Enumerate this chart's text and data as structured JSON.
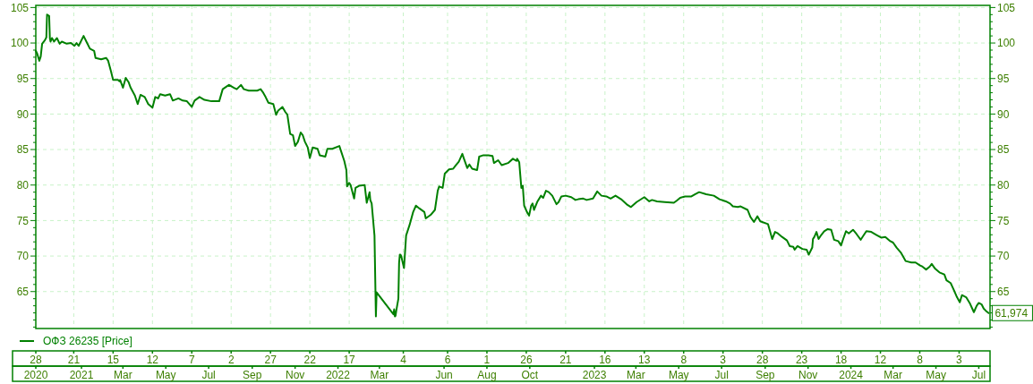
{
  "chart_data": {
    "type": "line",
    "x": [
      "2020-10-28",
      "2020-10-30",
      "2020-11-02",
      "2020-11-04",
      "2020-11-06",
      "2020-11-10",
      "2020-11-12",
      "2020-11-13",
      "2020-11-16",
      "2020-11-17",
      "2020-11-18",
      "2020-11-20",
      "2020-11-23",
      "2020-11-27",
      "2020-12-01",
      "2020-12-04",
      "2020-12-11",
      "2020-12-17",
      "2020-12-22",
      "2020-12-25",
      "2020-12-28",
      "2021-01-04",
      "2021-01-08",
      "2021-01-13",
      "2021-01-19",
      "2021-01-21",
      "2021-01-29",
      "2021-02-05",
      "2021-02-08",
      "2021-02-12",
      "2021-02-15",
      "2021-02-22",
      "2021-02-24",
      "2021-02-25",
      "2021-03-01",
      "2021-03-05",
      "2021-03-09",
      "2021-03-12",
      "2021-03-18",
      "2021-03-22",
      "2021-03-26",
      "2021-04-01",
      "2021-04-06",
      "2021-04-12",
      "2021-04-16",
      "2021-04-20",
      "2021-04-23",
      "2021-04-30",
      "2021-05-07",
      "2021-05-11",
      "2021-05-19",
      "2021-05-25",
      "2021-05-31",
      "2021-06-07",
      "2021-06-11",
      "2021-06-18",
      "2021-06-25",
      "2021-07-05",
      "2021-07-16",
      "2021-07-21",
      "2021-07-27",
      "2021-07-30",
      "2021-08-06",
      "2021-08-10",
      "2021-08-16",
      "2021-08-20",
      "2021-08-27",
      "2021-09-08",
      "2021-09-13",
      "2021-09-16",
      "2021-09-20",
      "2021-09-24",
      "2021-10-01",
      "2021-10-05",
      "2021-10-08",
      "2021-10-14",
      "2021-10-18",
      "2021-10-21",
      "2021-10-25",
      "2021-10-29",
      "2021-11-01",
      "2021-11-05",
      "2021-11-09",
      "2021-11-12",
      "2021-11-15",
      "2021-11-19",
      "2021-11-22",
      "2021-11-26",
      "2021-12-03",
      "2021-12-06",
      "2021-12-14",
      "2021-12-17",
      "2021-12-24",
      "2022-01-03",
      "2022-01-10",
      "2022-01-13",
      "2022-01-14",
      "2022-01-17",
      "2022-01-19",
      "2022-01-24",
      "2022-01-26",
      "2022-01-31",
      "2022-02-08",
      "2022-02-11",
      "2022-02-15",
      "2022-02-16",
      "2022-02-18",
      "2022-02-22",
      "2022-02-24",
      "2022-02-25",
      "2022-03-21",
      "2022-03-22",
      "2022-03-23",
      "2022-03-24",
      "2022-03-25",
      "2022-03-28",
      "2022-03-29",
      "2022-03-30",
      "2022-03-31",
      "2022-04-01",
      "2022-04-05",
      "2022-04-08",
      "2022-04-13",
      "2022-04-18",
      "2022-04-22",
      "2022-04-27",
      "2022-05-04",
      "2022-05-06",
      "2022-05-13",
      "2022-05-19",
      "2022-05-23",
      "2022-05-25",
      "2022-05-30",
      "2022-06-02",
      "2022-06-08",
      "2022-06-14",
      "2022-06-17",
      "2022-06-22",
      "2022-06-27",
      "2022-06-29",
      "2022-07-04",
      "2022-07-07",
      "2022-07-11",
      "2022-07-18",
      "2022-07-21",
      "2022-07-27",
      "2022-08-03",
      "2022-08-09",
      "2022-08-11",
      "2022-08-17",
      "2022-08-22",
      "2022-08-31",
      "2022-09-07",
      "2022-09-12",
      "2022-09-13",
      "2022-09-16",
      "2022-09-19",
      "2022-09-21",
      "2022-09-23",
      "2022-09-27",
      "2022-09-30",
      "2022-10-03",
      "2022-10-05",
      "2022-10-07",
      "2022-10-12",
      "2022-10-17",
      "2022-10-20",
      "2022-10-24",
      "2022-10-28",
      "2022-11-02",
      "2022-11-08",
      "2022-11-11",
      "2022-11-15",
      "2022-11-21",
      "2022-11-29",
      "2022-12-05",
      "2022-12-09",
      "2022-12-16",
      "2022-12-21",
      "2022-12-30",
      "2023-01-05",
      "2023-01-11",
      "2023-01-18",
      "2023-01-24",
      "2023-01-31",
      "2023-02-08",
      "2023-02-17",
      "2023-02-22",
      "2023-03-02",
      "2023-03-13",
      "2023-03-20",
      "2023-03-24",
      "2023-03-31",
      "2023-04-11",
      "2023-04-24",
      "2023-04-28",
      "2023-05-03",
      "2023-05-10",
      "2023-05-19",
      "2023-05-24",
      "2023-05-30",
      "2023-06-09",
      "2023-06-20",
      "2023-06-28",
      "2023-07-07",
      "2023-07-13",
      "2023-07-17",
      "2023-07-24",
      "2023-07-28",
      "2023-08-07",
      "2023-08-11",
      "2023-08-16",
      "2023-08-21",
      "2023-08-25",
      "2023-09-05",
      "2023-09-11",
      "2023-09-15",
      "2023-09-19",
      "2023-09-25",
      "2023-10-02",
      "2023-10-06",
      "2023-10-11",
      "2023-10-13",
      "2023-10-17",
      "2023-10-24",
      "2023-10-30",
      "2023-11-02",
      "2023-11-07",
      "2023-11-08",
      "2023-11-10",
      "2023-11-13",
      "2023-11-16",
      "2023-11-20",
      "2023-11-24",
      "2023-11-29",
      "2023-12-04",
      "2023-12-08",
      "2023-12-14",
      "2023-12-18",
      "2023-12-21",
      "2023-12-25",
      "2023-12-29",
      "2024-01-04",
      "2024-01-09",
      "2024-01-15",
      "2024-01-23",
      "2024-01-30",
      "2024-02-06",
      "2024-02-13",
      "2024-02-19",
      "2024-02-26",
      "2024-03-01",
      "2024-03-06",
      "2024-03-12",
      "2024-03-19",
      "2024-03-27",
      "2024-04-02",
      "2024-04-08",
      "2024-04-12",
      "2024-04-17",
      "2024-04-22",
      "2024-04-25",
      "2024-04-30",
      "2024-05-06",
      "2024-05-13",
      "2024-05-16",
      "2024-05-22",
      "2024-05-27",
      "2024-05-31",
      "2024-06-04",
      "2024-06-07",
      "2024-06-13",
      "2024-06-18",
      "2024-06-24",
      "2024-06-28",
      "2024-07-01",
      "2024-07-05",
      "2024-07-08",
      "2024-07-11",
      "2024-07-15"
    ],
    "series": [
      {
        "name": "ОФЗ 26235 [Price]",
        "color": "#008000",
        "values": [
          98.9,
          98.5,
          97.5,
          98.1,
          99.9,
          100.4,
          100.8,
          104.0,
          103.8,
          100.7,
          100.2,
          100.7,
          100.2,
          100.7,
          99.9,
          100.2,
          99.9,
          100.0,
          99.6,
          100.0,
          99.6,
          101.0,
          100.2,
          99.2,
          98.9,
          97.9,
          97.7,
          97.9,
          97.5,
          96.0,
          94.8,
          94.8,
          94.6,
          94.8,
          93.7,
          95.1,
          94.5,
          93.7,
          92.6,
          91.4,
          92.7,
          92.4,
          91.4,
          90.9,
          92.4,
          92.2,
          92.8,
          92.6,
          92.8,
          91.9,
          92.2,
          91.9,
          91.8,
          91.0,
          91.9,
          92.4,
          92.0,
          91.8,
          91.8,
          93.5,
          93.9,
          94.1,
          93.7,
          93.5,
          94.1,
          93.5,
          93.3,
          93.3,
          93.5,
          93.1,
          92.4,
          91.6,
          91.4,
          89.9,
          90.5,
          91.0,
          90.3,
          89.9,
          87.2,
          87.0,
          85.5,
          86.1,
          87.4,
          87.0,
          86.1,
          85.3,
          83.8,
          85.3,
          85.1,
          84.2,
          84.0,
          85.1,
          85.1,
          85.5,
          83.4,
          82.1,
          79.8,
          80.3,
          80.0,
          78.1,
          79.6,
          79.9,
          80.0,
          77.5,
          79.0,
          77.9,
          77.4,
          72.9,
          61.5,
          64.9,
          61.8,
          62.5,
          61.5,
          61.6,
          62.3,
          64.0,
          69.0,
          70.2,
          70.2,
          70.0,
          68.3,
          72.9,
          74.4,
          76.2,
          77.1,
          76.7,
          76.2,
          75.3,
          75.8,
          76.5,
          79.2,
          79.8,
          79.6,
          81.6,
          82.2,
          82.3,
          82.7,
          83.3,
          84.4,
          83.8,
          82.4,
          82.9,
          82.3,
          82.1,
          84.0,
          84.2,
          84.2,
          84.1,
          83.1,
          83.5,
          82.8,
          83.1,
          83.7,
          83.4,
          83.7,
          83.2,
          79.6,
          79.9,
          77.1,
          76.2,
          75.7,
          77.1,
          77.4,
          76.5,
          77.7,
          78.5,
          78.2,
          79.2,
          79.0,
          78.5,
          77.3,
          77.6,
          78.4,
          78.5,
          78.3,
          77.9,
          78.0,
          78.1,
          77.9,
          78.1,
          79.1,
          78.5,
          78.4,
          78.1,
          78.5,
          78.0,
          77.2,
          76.9,
          77.6,
          78.3,
          77.7,
          77.9,
          77.7,
          77.6,
          77.5,
          77.8,
          78.2,
          78.4,
          78.4,
          78.7,
          79.0,
          78.7,
          78.5,
          78.0,
          77.7,
          77.4,
          77.0,
          76.9,
          77.0,
          76.5,
          75.5,
          74.8,
          75.6,
          74.9,
          74.5,
          72.4,
          73.4,
          73.2,
          72.7,
          72.2,
          71.4,
          71.3,
          70.9,
          71.4,
          71.0,
          70.9,
          70.2,
          71.2,
          72.4,
          72.7,
          73.4,
          72.4,
          73.0,
          73.5,
          73.8,
          73.7,
          72.3,
          72.1,
          71.5,
          72.4,
          73.5,
          73.2,
          73.7,
          73.1,
          72.3,
          73.5,
          73.4,
          73.0,
          72.6,
          72.7,
          72.1,
          71.9,
          71.2,
          70.5,
          69.3,
          69.1,
          69.1,
          68.7,
          68.5,
          68.1,
          68.5,
          68.9,
          68.2,
          67.7,
          67.4,
          66.6,
          66.2,
          65.1,
          64.2,
          63.5,
          64.5,
          64.2,
          63.4,
          62.1,
          63.0,
          63.4,
          63.2,
          62.6,
          62.3,
          61.974
        ]
      }
    ],
    "xlim": [
      "2020-10-28",
      "2024-07-17"
    ],
    "xticks": [
      {
        "value": "2020-10-28",
        "label": "28"
      },
      {
        "value": "2020-12-21",
        "label": "21"
      },
      {
        "value": "2021-02-15",
        "label": "15"
      },
      {
        "value": "2021-04-12",
        "label": "12"
      },
      {
        "value": "2021-06-07",
        "label": "7"
      },
      {
        "value": "2021-08-02",
        "label": "2"
      },
      {
        "value": "2021-09-27",
        "label": "27"
      },
      {
        "value": "2021-11-22",
        "label": "22"
      },
      {
        "value": "2022-01-17",
        "label": "17"
      },
      {
        "value": "2022-04-04",
        "label": "4"
      },
      {
        "value": "2022-06-06",
        "label": "6"
      },
      {
        "value": "2022-08-01",
        "label": "1"
      },
      {
        "value": "2022-09-26",
        "label": "26"
      },
      {
        "value": "2022-11-21",
        "label": "21"
      },
      {
        "value": "2023-01-16",
        "label": "16"
      },
      {
        "value": "2023-03-13",
        "label": "13"
      },
      {
        "value": "2023-05-08",
        "label": "8"
      },
      {
        "value": "2023-07-03",
        "label": "3"
      },
      {
        "value": "2023-08-28",
        "label": "28"
      },
      {
        "value": "2023-10-23",
        "label": "23"
      },
      {
        "value": "2023-12-18",
        "label": "18"
      },
      {
        "value": "2024-02-12",
        "label": "12"
      },
      {
        "value": "2024-04-08",
        "label": "8"
      },
      {
        "value": "2024-06-03",
        "label": "3"
      }
    ],
    "x2lim": [
      "2020-10-28",
      "2024-07-17"
    ],
    "x2ticks": [
      {
        "value": "2020-10-28",
        "label": "2020"
      },
      {
        "value": "2021-01-01",
        "label": "2021"
      },
      {
        "value": "2021-03-01",
        "label": "Mar"
      },
      {
        "value": "2021-05-01",
        "label": "May"
      },
      {
        "value": "2021-07-01",
        "label": "Jul"
      },
      {
        "value": "2021-09-01",
        "label": "Sep"
      },
      {
        "value": "2021-11-01",
        "label": "Nov"
      },
      {
        "value": "2022-01-01",
        "label": "2022"
      },
      {
        "value": "2022-03-01",
        "label": "Mar"
      },
      {
        "value": "2022-06-01",
        "label": "Jun"
      },
      {
        "value": "2022-08-01",
        "label": "Aug"
      },
      {
        "value": "2022-10-01",
        "label": "Oct"
      },
      {
        "value": "2023-01-01",
        "label": "2023"
      },
      {
        "value": "2023-03-01",
        "label": "Mar"
      },
      {
        "value": "2023-05-01",
        "label": "May"
      },
      {
        "value": "2023-07-01",
        "label": "Jul"
      },
      {
        "value": "2023-09-01",
        "label": "Sep"
      },
      {
        "value": "2023-11-01",
        "label": "Nov"
      },
      {
        "value": "2024-01-01",
        "label": "2024"
      },
      {
        "value": "2024-03-01",
        "label": "Mar"
      },
      {
        "value": "2024-05-01",
        "label": "May"
      },
      {
        "value": "2024-07-01",
        "label": "Jul"
      }
    ],
    "ylim": [
      59.8,
      105.3
    ],
    "yticks": [
      {
        "value": 60,
        "label": null
      },
      {
        "value": 61,
        "label": null
      },
      {
        "value": 62,
        "label": null
      },
      {
        "value": 63,
        "label": null
      },
      {
        "value": 64,
        "label": null
      },
      65,
      {
        "value": 66,
        "label": null
      },
      {
        "value": 67,
        "label": null
      },
      {
        "value": 68,
        "label": null
      },
      {
        "value": 69,
        "label": null
      },
      70,
      {
        "value": 71,
        "label": null
      },
      {
        "value": 72,
        "label": null
      },
      {
        "value": 73,
        "label": null
      },
      {
        "value": 74,
        "label": null
      },
      75,
      {
        "value": 76,
        "label": null
      },
      {
        "value": 77,
        "label": null
      },
      {
        "value": 78,
        "label": null
      },
      {
        "value": 79,
        "label": null
      },
      80,
      {
        "value": 81,
        "label": null
      },
      {
        "value": 82,
        "label": null
      },
      {
        "value": 83,
        "label": null
      },
      {
        "value": 84,
        "label": null
      },
      85,
      {
        "value": 86,
        "label": null
      },
      {
        "value": 87,
        "label": null
      },
      {
        "value": 88,
        "label": null
      },
      {
        "value": 89,
        "label": null
      },
      90,
      {
        "value": 91,
        "label": null
      },
      {
        "value": 92,
        "label": null
      },
      {
        "value": 93,
        "label": null
      },
      {
        "value": 94,
        "label": null
      },
      95,
      {
        "value": 96,
        "label": null
      },
      {
        "value": 97,
        "label": null
      },
      {
        "value": 98,
        "label": null
      },
      {
        "value": 99,
        "label": null
      },
      100,
      {
        "value": 101,
        "label": null
      },
      {
        "value": 102,
        "label": null
      },
      {
        "value": 103,
        "label": null
      },
      {
        "value": 104,
        "label": null
      },
      105
    ],
    "y2lim": [
      59.8,
      105.3
    ],
    "y2ticks": [
      {
        "value": 60,
        "label": null
      },
      {
        "value": 61,
        "label": null
      },
      {
        "value": 62,
        "label": null
      },
      {
        "value": 63,
        "label": null
      },
      {
        "value": 64,
        "label": null
      },
      65,
      {
        "value": 66,
        "label": null
      },
      {
        "value": 67,
        "label": null
      },
      {
        "value": 68,
        "label": null
      },
      {
        "value": 69,
        "label": null
      },
      70,
      {
        "value": 71,
        "label": null
      },
      {
        "value": 72,
        "label": null
      },
      {
        "value": 73,
        "label": null
      },
      {
        "value": 74,
        "label": null
      },
      75,
      {
        "value": 76,
        "label": null
      },
      {
        "value": 77,
        "label": null
      },
      {
        "value": 78,
        "label": null
      },
      {
        "value": 79,
        "label": null
      },
      80,
      {
        "value": 81,
        "label": null
      },
      {
        "value": 82,
        "label": null
      },
      {
        "value": 83,
        "label": null
      },
      {
        "value": 84,
        "label": null
      },
      85,
      {
        "value": 86,
        "label": null
      },
      {
        "value": 87,
        "label": null
      },
      {
        "value": 88,
        "label": null
      },
      {
        "value": 89,
        "label": null
      },
      90,
      {
        "value": 91,
        "label": null
      },
      {
        "value": 92,
        "label": null
      },
      {
        "value": 93,
        "label": null
      },
      {
        "value": 94,
        "label": null
      },
      95,
      {
        "value": 96,
        "label": null
      },
      {
        "value": 97,
        "label": null
      },
      {
        "value": 98,
        "label": null
      },
      {
        "value": 99,
        "label": null
      },
      100,
      {
        "value": 101,
        "label": null
      },
      {
        "value": 102,
        "label": null
      },
      {
        "value": 103,
        "label": null
      },
      {
        "value": 104,
        "label": null
      },
      105
    ],
    "grid": true,
    "legend": "bottom left",
    "annotations": [
      {
        "text": "61,974",
        "x": "2024-07-15",
        "y": 61.974
      }
    ]
  }
}
